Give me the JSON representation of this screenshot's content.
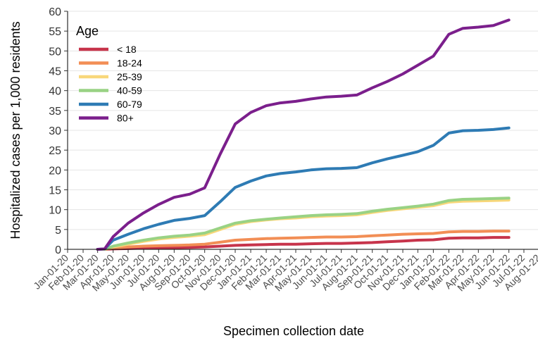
{
  "chart_data": {
    "type": "line",
    "xlabel": "Specimen collection date",
    "ylabel": "Hospitalized cases per 1,000 residents",
    "ylim": [
      0,
      60
    ],
    "yticks": [
      0,
      5,
      10,
      15,
      20,
      25,
      30,
      35,
      40,
      45,
      50,
      55,
      60
    ],
    "xlim": [
      "2020-01-01",
      "2022-08-01"
    ],
    "xticks": [
      {
        "date": "2020-01-01",
        "label": "Jan-01-20"
      },
      {
        "date": "2020-02-01",
        "label": "Feb-01-20"
      },
      {
        "date": "2020-03-01",
        "label": "Mar-01-20"
      },
      {
        "date": "2020-04-01",
        "label": "Apr-01-20"
      },
      {
        "date": "2020-05-01",
        "label": "May-01-20"
      },
      {
        "date": "2020-06-01",
        "label": "Jun-01-20"
      },
      {
        "date": "2020-07-01",
        "label": "Jul-01-20"
      },
      {
        "date": "2020-08-01",
        "label": "Aug-01-20"
      },
      {
        "date": "2020-09-01",
        "label": "Sep-01-20"
      },
      {
        "date": "2020-10-01",
        "label": "Oct-01-20"
      },
      {
        "date": "2020-11-01",
        "label": "Nov-01-20"
      },
      {
        "date": "2020-12-01",
        "label": "Dec-01-20"
      },
      {
        "date": "2021-01-01",
        "label": "Jan-01-21"
      },
      {
        "date": "2021-02-01",
        "label": "Feb-01-21"
      },
      {
        "date": "2021-03-01",
        "label": "Mar-01-21"
      },
      {
        "date": "2021-04-01",
        "label": "Apr-01-21"
      },
      {
        "date": "2021-05-01",
        "label": "May-01-21"
      },
      {
        "date": "2021-06-01",
        "label": "Jun-01-21"
      },
      {
        "date": "2021-07-01",
        "label": "Jul-01-21"
      },
      {
        "date": "2021-08-01",
        "label": "Aug-01-21"
      },
      {
        "date": "2021-09-01",
        "label": "Sep-01-21"
      },
      {
        "date": "2021-10-01",
        "label": "Oct-01-21"
      },
      {
        "date": "2021-11-01",
        "label": "Nov-01-21"
      },
      {
        "date": "2021-12-01",
        "label": "Dec-01-21"
      },
      {
        "date": "2022-01-01",
        "label": "Jan-01-22"
      },
      {
        "date": "2022-02-01",
        "label": "Feb-01-22"
      },
      {
        "date": "2022-03-01",
        "label": "Mar-01-22"
      },
      {
        "date": "2022-04-01",
        "label": "Apr-01-22"
      },
      {
        "date": "2022-05-01",
        "label": "May-01-22"
      },
      {
        "date": "2022-06-01",
        "label": "Jun-01-22"
      },
      {
        "date": "2022-07-01",
        "label": "Jul-01-22"
      },
      {
        "date": "2022-08-01",
        "label": "Aug-01-22"
      }
    ],
    "grid": true,
    "legend": {
      "title": "Age",
      "position": "top-left"
    },
    "series": [
      {
        "name": "< 18",
        "color": "#c7344b",
        "points": [
          [
            "2020-03-01",
            0
          ],
          [
            "2020-03-15",
            0
          ],
          [
            "2020-04-01",
            0.1
          ],
          [
            "2020-05-01",
            0.2
          ],
          [
            "2020-06-01",
            0.3
          ],
          [
            "2020-07-01",
            0.4
          ],
          [
            "2020-08-01",
            0.4
          ],
          [
            "2020-09-01",
            0.5
          ],
          [
            "2020-10-01",
            0.6
          ],
          [
            "2020-11-01",
            0.8
          ],
          [
            "2020-12-01",
            1.0
          ],
          [
            "2021-01-01",
            1.1
          ],
          [
            "2021-02-01",
            1.2
          ],
          [
            "2021-03-01",
            1.3
          ],
          [
            "2021-04-01",
            1.3
          ],
          [
            "2021-05-01",
            1.4
          ],
          [
            "2021-06-01",
            1.5
          ],
          [
            "2021-07-01",
            1.5
          ],
          [
            "2021-08-01",
            1.6
          ],
          [
            "2021-09-01",
            1.7
          ],
          [
            "2021-10-01",
            1.9
          ],
          [
            "2021-11-01",
            2.1
          ],
          [
            "2021-12-01",
            2.3
          ],
          [
            "2022-01-01",
            2.4
          ],
          [
            "2022-02-01",
            2.8
          ],
          [
            "2022-03-01",
            2.9
          ],
          [
            "2022-04-01",
            2.9
          ],
          [
            "2022-05-01",
            3.0
          ],
          [
            "2022-06-01",
            3.0
          ]
        ]
      },
      {
        "name": "18-24",
        "color": "#f28e55",
        "points": [
          [
            "2020-03-01",
            0
          ],
          [
            "2020-03-15",
            0
          ],
          [
            "2020-04-01",
            0.3
          ],
          [
            "2020-05-01",
            0.6
          ],
          [
            "2020-06-01",
            0.8
          ],
          [
            "2020-07-01",
            0.9
          ],
          [
            "2020-08-01",
            1.0
          ],
          [
            "2020-09-01",
            1.1
          ],
          [
            "2020-10-01",
            1.3
          ],
          [
            "2020-11-01",
            1.8
          ],
          [
            "2020-12-01",
            2.3
          ],
          [
            "2021-01-01",
            2.5
          ],
          [
            "2021-02-01",
            2.7
          ],
          [
            "2021-03-01",
            2.8
          ],
          [
            "2021-04-01",
            2.9
          ],
          [
            "2021-05-01",
            3.0
          ],
          [
            "2021-06-01",
            3.1
          ],
          [
            "2021-07-01",
            3.1
          ],
          [
            "2021-08-01",
            3.2
          ],
          [
            "2021-09-01",
            3.4
          ],
          [
            "2021-10-01",
            3.6
          ],
          [
            "2021-11-01",
            3.8
          ],
          [
            "2021-12-01",
            3.9
          ],
          [
            "2022-01-01",
            4.0
          ],
          [
            "2022-02-01",
            4.4
          ],
          [
            "2022-03-01",
            4.5
          ],
          [
            "2022-04-01",
            4.5
          ],
          [
            "2022-05-01",
            4.6
          ],
          [
            "2022-06-01",
            4.6
          ]
        ]
      },
      {
        "name": "25-39",
        "color": "#f8d77a",
        "points": [
          [
            "2020-03-01",
            0
          ],
          [
            "2020-03-15",
            0
          ],
          [
            "2020-04-01",
            0.6
          ],
          [
            "2020-05-01",
            1.3
          ],
          [
            "2020-06-01",
            2.0
          ],
          [
            "2020-07-01",
            2.6
          ],
          [
            "2020-08-01",
            3.0
          ],
          [
            "2020-09-01",
            3.3
          ],
          [
            "2020-10-01",
            3.7
          ],
          [
            "2020-11-01",
            5.0
          ],
          [
            "2020-12-01",
            6.3
          ],
          [
            "2021-01-01",
            7.0
          ],
          [
            "2021-02-01",
            7.4
          ],
          [
            "2021-03-01",
            7.7
          ],
          [
            "2021-04-01",
            7.9
          ],
          [
            "2021-05-01",
            8.2
          ],
          [
            "2021-06-01",
            8.4
          ],
          [
            "2021-07-01",
            8.5
          ],
          [
            "2021-08-01",
            8.7
          ],
          [
            "2021-09-01",
            9.3
          ],
          [
            "2021-10-01",
            9.8
          ],
          [
            "2021-11-01",
            10.2
          ],
          [
            "2021-12-01",
            10.6
          ],
          [
            "2022-01-01",
            11.0
          ],
          [
            "2022-02-01",
            11.9
          ],
          [
            "2022-03-01",
            12.1
          ],
          [
            "2022-04-01",
            12.2
          ],
          [
            "2022-05-01",
            12.3
          ],
          [
            "2022-06-01",
            12.4
          ]
        ]
      },
      {
        "name": "40-59",
        "color": "#99d284",
        "points": [
          [
            "2020-03-01",
            0
          ],
          [
            "2020-03-15",
            0
          ],
          [
            "2020-04-01",
            0.8
          ],
          [
            "2020-05-01",
            1.6
          ],
          [
            "2020-06-01",
            2.3
          ],
          [
            "2020-07-01",
            2.9
          ],
          [
            "2020-08-01",
            3.3
          ],
          [
            "2020-09-01",
            3.6
          ],
          [
            "2020-10-01",
            4.1
          ],
          [
            "2020-11-01",
            5.4
          ],
          [
            "2020-12-01",
            6.6
          ],
          [
            "2021-01-01",
            7.2
          ],
          [
            "2021-02-01",
            7.6
          ],
          [
            "2021-03-01",
            7.9
          ],
          [
            "2021-04-01",
            8.2
          ],
          [
            "2021-05-01",
            8.5
          ],
          [
            "2021-06-01",
            8.7
          ],
          [
            "2021-07-01",
            8.8
          ],
          [
            "2021-08-01",
            9.0
          ],
          [
            "2021-09-01",
            9.6
          ],
          [
            "2021-10-01",
            10.1
          ],
          [
            "2021-11-01",
            10.5
          ],
          [
            "2021-12-01",
            10.9
          ],
          [
            "2022-01-01",
            11.4
          ],
          [
            "2022-02-01",
            12.3
          ],
          [
            "2022-03-01",
            12.6
          ],
          [
            "2022-04-01",
            12.7
          ],
          [
            "2022-05-01",
            12.8
          ],
          [
            "2022-06-01",
            12.9
          ]
        ]
      },
      {
        "name": "60-79",
        "color": "#2e7bb4",
        "points": [
          [
            "2020-03-01",
            0
          ],
          [
            "2020-03-15",
            0.1
          ],
          [
            "2020-04-01",
            2.3
          ],
          [
            "2020-05-01",
            3.8
          ],
          [
            "2020-06-01",
            5.2
          ],
          [
            "2020-07-01",
            6.3
          ],
          [
            "2020-08-01",
            7.3
          ],
          [
            "2020-09-01",
            7.8
          ],
          [
            "2020-10-01",
            8.5
          ],
          [
            "2020-11-01",
            12.0
          ],
          [
            "2020-12-01",
            15.6
          ],
          [
            "2021-01-01",
            17.2
          ],
          [
            "2021-02-01",
            18.5
          ],
          [
            "2021-03-01",
            19.1
          ],
          [
            "2021-04-01",
            19.5
          ],
          [
            "2021-05-01",
            20.0
          ],
          [
            "2021-06-01",
            20.3
          ],
          [
            "2021-07-01",
            20.4
          ],
          [
            "2021-08-01",
            20.6
          ],
          [
            "2021-09-01",
            21.8
          ],
          [
            "2021-10-01",
            22.8
          ],
          [
            "2021-11-01",
            23.7
          ],
          [
            "2021-12-01",
            24.6
          ],
          [
            "2022-01-01",
            26.2
          ],
          [
            "2022-02-01",
            29.3
          ],
          [
            "2022-03-01",
            29.9
          ],
          [
            "2022-04-01",
            30.0
          ],
          [
            "2022-05-01",
            30.2
          ],
          [
            "2022-06-01",
            30.6
          ]
        ]
      },
      {
        "name": "80+",
        "color": "#7b1f8c",
        "points": [
          [
            "2020-03-01",
            0
          ],
          [
            "2020-03-15",
            0.1
          ],
          [
            "2020-04-01",
            3.2
          ],
          [
            "2020-05-01",
            6.6
          ],
          [
            "2020-06-01",
            9.2
          ],
          [
            "2020-07-01",
            11.3
          ],
          [
            "2020-08-01",
            13.1
          ],
          [
            "2020-09-01",
            13.9
          ],
          [
            "2020-10-01",
            15.5
          ],
          [
            "2020-11-01",
            24.0
          ],
          [
            "2020-12-01",
            31.6
          ],
          [
            "2021-01-01",
            34.5
          ],
          [
            "2021-02-01",
            36.2
          ],
          [
            "2021-03-01",
            36.9
          ],
          [
            "2021-04-01",
            37.3
          ],
          [
            "2021-05-01",
            37.9
          ],
          [
            "2021-06-01",
            38.4
          ],
          [
            "2021-07-01",
            38.6
          ],
          [
            "2021-08-01",
            38.9
          ],
          [
            "2021-09-01",
            40.7
          ],
          [
            "2021-10-01",
            42.3
          ],
          [
            "2021-11-01",
            44.2
          ],
          [
            "2021-12-01",
            46.4
          ],
          [
            "2022-01-01",
            48.7
          ],
          [
            "2022-02-01",
            54.2
          ],
          [
            "2022-03-01",
            55.7
          ],
          [
            "2022-04-01",
            56.0
          ],
          [
            "2022-05-01",
            56.4
          ],
          [
            "2022-06-01",
            57.8
          ]
        ]
      }
    ]
  }
}
